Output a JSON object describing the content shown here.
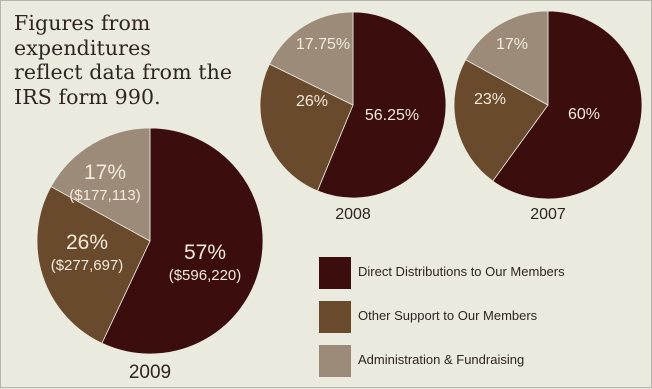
{
  "note": {
    "line1": "Figures from expenditures",
    "line2": "reflect data from the",
    "line3": "IRS form 990."
  },
  "colors": {
    "background": "#eaeadf",
    "direct": "#3b0d0d",
    "other": "#6a4a2c",
    "admin": "#9d8b7a",
    "text_dark": "#2f2520",
    "text_light": "#f3eadb"
  },
  "legend": {
    "items": [
      {
        "label": "Direct Distributions to Our Members",
        "color_key": "direct"
      },
      {
        "label": "Other Support to Our Members",
        "color_key": "other"
      },
      {
        "label": "Administration & Fundraising",
        "color_key": "admin"
      }
    ]
  },
  "chart_data": [
    {
      "type": "pie",
      "title": "2009",
      "slices": [
        {
          "category": "Direct Distributions to Our Members",
          "value": 57,
          "percent_label": "57%",
          "amount_label": "($596,220)"
        },
        {
          "category": "Other Support to Our Members",
          "value": 26,
          "percent_label": "26%",
          "amount_label": "($277,697)"
        },
        {
          "category": "Administration & Fundraising",
          "value": 17,
          "percent_label": "17%",
          "amount_label": "($177,113)"
        }
      ]
    },
    {
      "type": "pie",
      "title": "2008",
      "slices": [
        {
          "category": "Direct Distributions to Our Members",
          "value": 56.25,
          "percent_label": "56.25%"
        },
        {
          "category": "Other Support to Our Members",
          "value": 26,
          "percent_label": "26%"
        },
        {
          "category": "Administration & Fundraising",
          "value": 17.75,
          "percent_label": "17.75%"
        }
      ]
    },
    {
      "type": "pie",
      "title": "2007",
      "slices": [
        {
          "category": "Direct Distributions to Our Members",
          "value": 60,
          "percent_label": "60%"
        },
        {
          "category": "Other Support to Our Members",
          "value": 23,
          "percent_label": "23%"
        },
        {
          "category": "Administration & Fundraising",
          "value": 17,
          "percent_label": "17%"
        }
      ]
    }
  ]
}
